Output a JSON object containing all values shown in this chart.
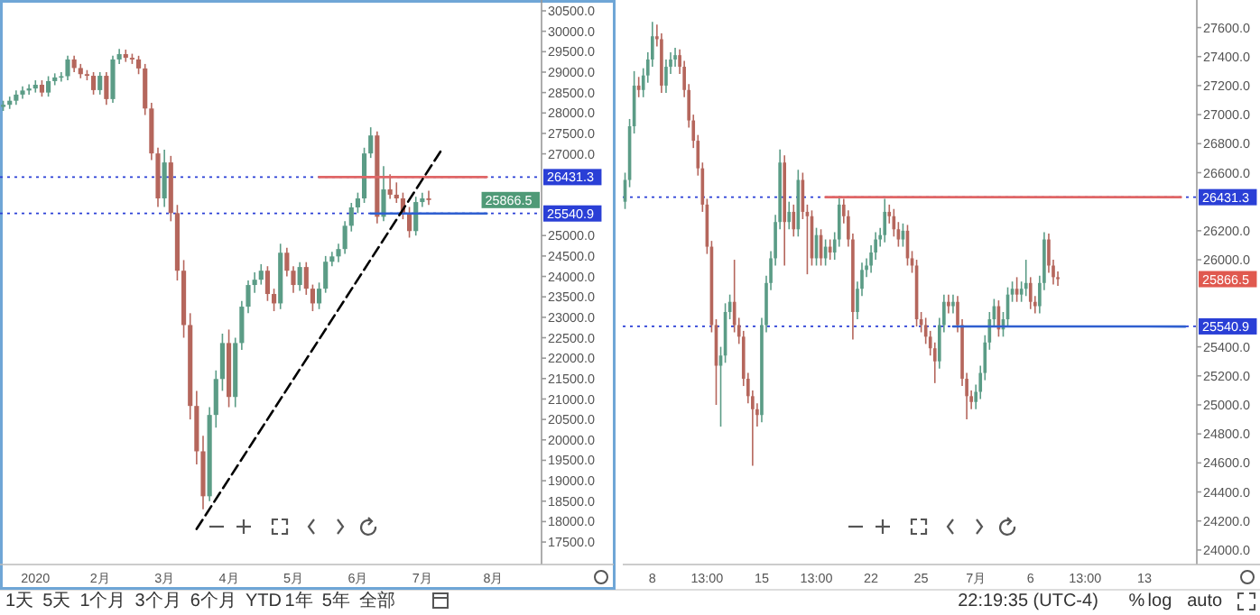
{
  "chart_data": [
    {
      "type": "candlestick",
      "categories": [
        null,
        null,
        null,
        null,
        null,
        "2020",
        null,
        null,
        null,
        null,
        null,
        null,
        null,
        null,
        null,
        "2月",
        null,
        null,
        null,
        null,
        null,
        null,
        null,
        null,
        null,
        "3月",
        null,
        null,
        null,
        null,
        null,
        null,
        null,
        null,
        null,
        "4月",
        null,
        null,
        null,
        null,
        null,
        null,
        null,
        null,
        null,
        "5月",
        null,
        null,
        null,
        null,
        null,
        null,
        null,
        null,
        null,
        "6月",
        null,
        null,
        null,
        null,
        null,
        null,
        null,
        null,
        null,
        "7月",
        null,
        null,
        null,
        null,
        null,
        null,
        null,
        null,
        null,
        null,
        "8月",
        null,
        null,
        null,
        null,
        null,
        null,
        null
      ],
      "ohlc": [
        [
          28150,
          28300,
          28050,
          28200
        ],
        [
          28200,
          28400,
          28100,
          28300
        ],
        [
          28300,
          28550,
          28200,
          28450
        ],
        [
          28450,
          28650,
          28350,
          28550
        ],
        [
          28550,
          28700,
          28450,
          28600
        ],
        [
          28600,
          28800,
          28500,
          28690
        ],
        [
          28690,
          28800,
          28400,
          28500
        ],
        [
          28500,
          28900,
          28400,
          28780
        ],
        [
          28780,
          28970,
          28680,
          28870
        ],
        [
          28870,
          29000,
          28770,
          28900
        ],
        [
          28900,
          29400,
          28800,
          29310
        ],
        [
          29310,
          29400,
          29000,
          29100
        ],
        [
          29100,
          29200,
          28850,
          28950
        ],
        [
          28950,
          29050,
          28800,
          28910
        ],
        [
          28910,
          29000,
          28450,
          28560
        ],
        [
          28560,
          29000,
          28450,
          28910
        ],
        [
          28910,
          29000,
          28200,
          28340
        ],
        [
          28340,
          29400,
          28250,
          29310
        ],
        [
          29310,
          29570,
          29200,
          29440
        ],
        [
          29440,
          29550,
          29250,
          29350
        ],
        [
          29350,
          29450,
          29200,
          29310
        ],
        [
          29310,
          29400,
          28950,
          29090
        ],
        [
          29090,
          29200,
          27950,
          28110
        ],
        [
          28110,
          28250,
          26850,
          27010
        ],
        [
          27010,
          27150,
          25700,
          25910
        ],
        [
          25910,
          27100,
          25700,
          26790
        ],
        [
          26790,
          26950,
          25350,
          25550
        ],
        [
          25550,
          25750,
          23900,
          24140
        ],
        [
          24140,
          24400,
          22500,
          22810
        ],
        [
          22810,
          23100,
          20500,
          20830
        ],
        [
          20830,
          21200,
          19400,
          19720
        ],
        [
          19720,
          20100,
          18300,
          18620
        ],
        [
          18620,
          20800,
          18500,
          20610
        ],
        [
          20610,
          21700,
          20300,
          21490
        ],
        [
          21490,
          22600,
          21200,
          22370
        ],
        [
          22370,
          22700,
          20800,
          21050
        ],
        [
          21050,
          22500,
          20800,
          22370
        ],
        [
          22370,
          23400,
          22200,
          23260
        ],
        [
          23260,
          23900,
          23100,
          23790
        ],
        [
          23790,
          24100,
          23600,
          23920
        ],
        [
          23920,
          24300,
          23800,
          24140
        ],
        [
          24140,
          24250,
          23400,
          23570
        ],
        [
          23570,
          23700,
          23150,
          23340
        ],
        [
          23340,
          24800,
          23200,
          24580
        ],
        [
          24580,
          24700,
          24000,
          24140
        ],
        [
          24140,
          24250,
          23600,
          23790
        ],
        [
          23790,
          24350,
          23650,
          24230
        ],
        [
          24230,
          24350,
          23550,
          23700
        ],
        [
          23700,
          23800,
          23150,
          23340
        ],
        [
          23340,
          23850,
          23200,
          23700
        ],
        [
          23700,
          24500,
          23600,
          24360
        ],
        [
          24360,
          24600,
          24250,
          24490
        ],
        [
          24490,
          24800,
          24350,
          24670
        ],
        [
          24670,
          25350,
          24550,
          25240
        ],
        [
          25240,
          25800,
          25100,
          25690
        ],
        [
          25690,
          26050,
          25550,
          25910
        ],
        [
          25910,
          27150,
          25800,
          27010
        ],
        [
          27010,
          27650,
          26900,
          27450
        ],
        [
          27450,
          27550,
          25300,
          25460
        ],
        [
          25460,
          26700,
          25350,
          26130
        ],
        [
          26130,
          26500,
          25900,
          26000
        ],
        [
          26000,
          26300,
          25800,
          25910
        ],
        [
          25910,
          26050,
          25400,
          25550
        ],
        [
          25550,
          25700,
          24950,
          25110
        ],
        [
          25110,
          25950,
          25000,
          25820
        ],
        [
          25820,
          26050,
          25700,
          25910
        ],
        [
          25910,
          26100,
          25750,
          25870
        ],
        null,
        null,
        null,
        null,
        null,
        null,
        null,
        null,
        null,
        null,
        null,
        null,
        null,
        null,
        null,
        null,
        null
      ],
      "series": [
        {
          "type": "line",
          "color": "#e06666",
          "line_style": "solid",
          "values": [
            null,
            null,
            null,
            null,
            null,
            null,
            null,
            null,
            null,
            null,
            null,
            null,
            null,
            null,
            null,
            null,
            null,
            null,
            null,
            null,
            null,
            null,
            null,
            null,
            null,
            null,
            null,
            null,
            null,
            null,
            null,
            null,
            null,
            null,
            null,
            null,
            null,
            null,
            null,
            null,
            null,
            null,
            null,
            null,
            null,
            null,
            null,
            null,
            null,
            26431.3,
            null,
            null,
            null,
            null,
            null,
            null,
            null,
            null,
            null,
            null,
            null,
            null,
            null,
            null,
            null,
            null,
            null,
            null,
            null,
            null,
            null,
            null,
            null,
            null,
            null,
            26431.3,
            null,
            null,
            null,
            null,
            null,
            null,
            null,
            null
          ]
        },
        {
          "type": "line",
          "color": "#2f5fd0",
          "line_style": "solid",
          "values": [
            null,
            null,
            null,
            null,
            null,
            null,
            null,
            null,
            null,
            null,
            null,
            null,
            null,
            null,
            null,
            null,
            null,
            null,
            null,
            null,
            null,
            null,
            null,
            null,
            null,
            null,
            null,
            null,
            null,
            null,
            null,
            null,
            null,
            null,
            null,
            null,
            null,
            null,
            null,
            null,
            null,
            null,
            null,
            null,
            null,
            null,
            null,
            null,
            null,
            null,
            null,
            null,
            null,
            null,
            null,
            null,
            null,
            25540.9,
            null,
            null,
            null,
            null,
            null,
            null,
            null,
            null,
            null,
            null,
            null,
            null,
            null,
            null,
            null,
            null,
            null,
            25540.9,
            null,
            null,
            null,
            null,
            null,
            null,
            null,
            null
          ]
        },
        {
          "type": "line",
          "color": "#000000",
          "line_style": "dashed",
          "values": [
            null,
            null,
            null,
            null,
            null,
            null,
            null,
            null,
            null,
            null,
            null,
            null,
            null,
            null,
            null,
            null,
            null,
            null,
            null,
            null,
            null,
            null,
            null,
            null,
            null,
            null,
            null,
            null,
            null,
            null,
            17820,
            null,
            null,
            null,
            null,
            null,
            null,
            null,
            null,
            null,
            null,
            null,
            null,
            null,
            null,
            null,
            null,
            null,
            null,
            null,
            null,
            null,
            null,
            null,
            null,
            null,
            null,
            null,
            null,
            null,
            null,
            null,
            null,
            null,
            null,
            null,
            null,
            null,
            27100,
            null,
            null,
            null,
            null,
            null,
            null,
            null,
            null,
            null,
            null,
            null,
            null,
            null,
            null,
            null
          ]
        }
      ],
      "ylim": [
        16950,
        30765
      ],
      "yticks": [
        {
          "value": 17500,
          "label": "17500.0"
        },
        {
          "value": 18000,
          "label": "18000.0"
        },
        {
          "value": 18500,
          "label": "18500.0"
        },
        {
          "value": 19000,
          "label": "19000.0"
        },
        {
          "value": 19500,
          "label": "19500.0"
        },
        {
          "value": 20000,
          "label": "20000.0"
        },
        {
          "value": 20500,
          "label": "20500.0"
        },
        {
          "value": 21000,
          "label": "21000.0"
        },
        {
          "value": 21500,
          "label": "21500.0"
        },
        {
          "value": 22000,
          "label": "22000.0"
        },
        {
          "value": 22500,
          "label": "22500.0"
        },
        {
          "value": 23000,
          "label": "23000.0"
        },
        {
          "value": 23500,
          "label": "23500.0"
        },
        {
          "value": 24000,
          "label": "24000.0"
        },
        {
          "value": 24500,
          "label": "24500.0"
        },
        {
          "value": 25000,
          "label": "25000.0"
        },
        {
          "value": 27000,
          "label": "27000.0"
        },
        {
          "value": 27500,
          "label": "27500.0"
        },
        {
          "value": 28000,
          "label": "28000.0"
        },
        {
          "value": 28500,
          "label": "28500.0"
        },
        {
          "value": 29000,
          "label": "29000.0"
        },
        {
          "value": 29500,
          "label": "29500.0"
        },
        {
          "value": 30000,
          "label": "30000.0"
        },
        {
          "value": 30500,
          "label": "30500.0"
        }
      ],
      "ref_lines": [
        {
          "axis": "y",
          "value": 26431.3,
          "label": "26431.3",
          "color": "#2a3fd6",
          "line_style": "dotted"
        },
        {
          "axis": "y",
          "value": 25540.9,
          "label": "25540.9",
          "color": "#2a3fd6",
          "line_style": "dotted"
        }
      ],
      "annotations": [
        "25866.5",
        "1天",
        "5天",
        "1个月",
        "3个月",
        "6个月",
        "YTD",
        "1年",
        "5年",
        "全部"
      ]
    },
    {
      "type": "candlestick",
      "categories": [
        null,
        null,
        null,
        null,
        null,
        null,
        "8",
        null,
        null,
        null,
        null,
        null,
        null,
        null,
        null,
        null,
        null,
        null,
        "13:00",
        null,
        null,
        null,
        null,
        null,
        null,
        null,
        null,
        null,
        null,
        null,
        "15",
        null,
        null,
        null,
        null,
        null,
        null,
        null,
        null,
        null,
        null,
        null,
        "13:00",
        null,
        null,
        null,
        null,
        null,
        null,
        null,
        null,
        null,
        null,
        null,
        "22",
        null,
        null,
        null,
        null,
        null,
        null,
        null,
        null,
        null,
        null,
        "25",
        null,
        null,
        null,
        null,
        null,
        null,
        null,
        null,
        null,
        null,
        null,
        "7月",
        null,
        null,
        null,
        null,
        null,
        null,
        null,
        null,
        null,
        null,
        null,
        "6",
        null,
        null,
        null,
        null,
        null,
        null,
        null,
        null,
        null,
        null,
        null,
        "13:00",
        null,
        null,
        null,
        null,
        null,
        null,
        null,
        null,
        null,
        null,
        null,
        null,
        "13",
        null,
        null,
        null,
        null,
        null,
        null,
        null,
        null,
        null,
        null,
        null
      ],
      "ohlc": [
        [
          26400,
          26600,
          26350,
          26550
        ],
        [
          26550,
          26970,
          26500,
          26920
        ],
        [
          26920,
          27300,
          26870,
          27200
        ],
        [
          27200,
          27260,
          27120,
          27170
        ],
        [
          27170,
          27320,
          27120,
          27270
        ],
        [
          27270,
          27430,
          27220,
          27380
        ],
        [
          27380,
          27640,
          27330,
          27540
        ],
        [
          27540,
          27620,
          27470,
          27520
        ],
        [
          27520,
          27560,
          27150,
          27200
        ],
        [
          27200,
          27380,
          27150,
          27330
        ],
        [
          27330,
          27430,
          27280,
          27380
        ],
        [
          27380,
          27460,
          27330,
          27410
        ],
        [
          27410,
          27450,
          27280,
          27330
        ],
        [
          27330,
          27370,
          27120,
          27170
        ],
        [
          27170,
          27210,
          26910,
          26960
        ],
        [
          26960,
          27000,
          26770,
          26820
        ],
        [
          26820,
          26860,
          26580,
          26630
        ],
        [
          26630,
          26670,
          26330,
          26380
        ],
        [
          26380,
          26420,
          26040,
          26090
        ],
        [
          26090,
          26130,
          25500,
          25550
        ],
        [
          25550,
          25590,
          25000,
          25270
        ],
        [
          25270,
          25400,
          24850,
          25340
        ],
        [
          25340,
          25700,
          25290,
          25640
        ],
        [
          25640,
          25760,
          25590,
          25710
        ],
        [
          25710,
          26000,
          25500,
          25550
        ],
        [
          25550,
          25600,
          25420,
          25470
        ],
        [
          25470,
          25510,
          25130,
          25180
        ],
        [
          25180,
          25220,
          25010,
          25060
        ],
        [
          25060,
          25100,
          24580,
          24970
        ],
        [
          24970,
          25010,
          24850,
          24930
        ],
        [
          24930,
          25600,
          24880,
          25550
        ],
        [
          25550,
          25890,
          25500,
          25840
        ],
        [
          25840,
          26060,
          25790,
          26010
        ],
        [
          26010,
          26310,
          25960,
          26260
        ],
        [
          26260,
          26760,
          26210,
          26670
        ],
        [
          26670,
          26720,
          25960,
          26260
        ],
        [
          26260,
          26400,
          26210,
          26330
        ],
        [
          26330,
          26380,
          26160,
          26210
        ],
        [
          26210,
          26620,
          26160,
          26550
        ],
        [
          26550,
          26600,
          26280,
          26330
        ],
        [
          26330,
          26380,
          25900,
          26300
        ],
        [
          26300,
          26340,
          25960,
          26010
        ],
        [
          26010,
          26220,
          25960,
          26170
        ],
        [
          26170,
          26210,
          25960,
          26010
        ],
        [
          26010,
          26140,
          25960,
          26090
        ],
        [
          26090,
          26140,
          26000,
          26050
        ],
        [
          26050,
          26190,
          26000,
          26140
        ],
        [
          26140,
          26440,
          26090,
          26380
        ],
        [
          26380,
          26420,
          26250,
          26300
        ],
        [
          26300,
          26340,
          26090,
          26140
        ],
        [
          26140,
          26180,
          25450,
          25640
        ],
        [
          25640,
          25850,
          25590,
          25800
        ],
        [
          25800,
          25980,
          25750,
          25930
        ],
        [
          25930,
          26010,
          25880,
          25960
        ],
        [
          25960,
          26100,
          25910,
          26050
        ],
        [
          26050,
          26190,
          26000,
          26140
        ],
        [
          26140,
          26220,
          26090,
          26170
        ],
        [
          26170,
          26420,
          26120,
          26330
        ],
        [
          26330,
          26380,
          26250,
          26300
        ],
        [
          26300,
          26350,
          26160,
          26210
        ],
        [
          26210,
          26260,
          26090,
          26140
        ],
        [
          26140,
          26250,
          26090,
          26200
        ],
        [
          26200,
          26240,
          25960,
          26010
        ],
        [
          26010,
          26060,
          25910,
          25960
        ],
        [
          25960,
          26000,
          25540,
          25590
        ],
        [
          25590,
          25640,
          25500,
          25550
        ],
        [
          25550,
          25600,
          25420,
          25470
        ],
        [
          25470,
          25510,
          25340,
          25390
        ],
        [
          25390,
          25430,
          25150,
          25300
        ],
        [
          25300,
          25600,
          25250,
          25550
        ],
        [
          25550,
          25760,
          25500,
          25710
        ],
        [
          25710,
          25760,
          25630,
          25680
        ],
        [
          25680,
          25760,
          25630,
          25710
        ],
        [
          25710,
          25750,
          25500,
          25550
        ],
        [
          25550,
          25590,
          25130,
          25180
        ],
        [
          25180,
          25220,
          24900,
          25060
        ],
        [
          25060,
          25100,
          24970,
          25020
        ],
        [
          25020,
          25140,
          24970,
          25090
        ],
        [
          25090,
          25270,
          25040,
          25220
        ],
        [
          25220,
          25480,
          25170,
          25430
        ],
        [
          25430,
          25640,
          25380,
          25590
        ],
        [
          25590,
          25730,
          25540,
          25680
        ],
        [
          25680,
          25720,
          25470,
          25520
        ],
        [
          25520,
          25640,
          25470,
          25590
        ],
        [
          25590,
          25810,
          25540,
          25760
        ],
        [
          25760,
          25850,
          25710,
          25800
        ],
        [
          25800,
          25880,
          25710,
          25760
        ],
        [
          25760,
          25850,
          25710,
          25800
        ],
        [
          25800,
          26000,
          25750,
          25840
        ],
        [
          25840,
          25880,
          25660,
          25710
        ],
        [
          25710,
          25750,
          25630,
          25680
        ],
        [
          25680,
          25890,
          25630,
          25840
        ],
        [
          25840,
          26190,
          25790,
          26140
        ],
        [
          26140,
          26180,
          25910,
          25960
        ],
        [
          25960,
          26000,
          25830,
          25880
        ],
        [
          25880,
          25920,
          25820,
          25866.5
        ],
        null,
        null,
        null,
        null,
        null,
        null,
        null,
        null,
        null,
        null,
        null,
        null,
        null,
        null,
        null,
        null,
        null,
        null,
        null,
        null,
        null,
        null,
        null,
        null,
        null,
        null,
        null,
        null,
        null,
        null
      ],
      "series": [
        {
          "type": "line",
          "color": "#e06666",
          "line_style": "solid",
          "values": [
            null,
            null,
            null,
            null,
            null,
            null,
            null,
            null,
            null,
            null,
            null,
            null,
            null,
            null,
            null,
            null,
            null,
            null,
            null,
            null,
            null,
            null,
            null,
            null,
            null,
            null,
            null,
            null,
            null,
            null,
            null,
            null,
            null,
            null,
            null,
            null,
            null,
            null,
            null,
            null,
            null,
            null,
            null,
            null,
            26431.3,
            null,
            null,
            null,
            null,
            null,
            null,
            null,
            null,
            null,
            null,
            null,
            null,
            null,
            null,
            null,
            null,
            null,
            null,
            null,
            null,
            null,
            null,
            null,
            null,
            null,
            null,
            null,
            null,
            null,
            null,
            null,
            null,
            null,
            null,
            null,
            null,
            null,
            null,
            null,
            null,
            null,
            null,
            null,
            null,
            null,
            null,
            null,
            null,
            null,
            null,
            null,
            null,
            null,
            null,
            null,
            null,
            null,
            null,
            null,
            null,
            null,
            null,
            null,
            null,
            null,
            null,
            null,
            null,
            null,
            null,
            null,
            null,
            null,
            null,
            null,
            null,
            null,
            26431.3,
            null,
            null,
            null
          ]
        },
        {
          "type": "line",
          "color": "#2f5fd0",
          "line_style": "solid",
          "values": [
            null,
            null,
            null,
            null,
            null,
            null,
            null,
            null,
            null,
            null,
            null,
            null,
            null,
            null,
            null,
            null,
            null,
            null,
            null,
            null,
            null,
            null,
            null,
            null,
            null,
            null,
            null,
            null,
            null,
            null,
            null,
            null,
            null,
            null,
            null,
            null,
            null,
            null,
            null,
            null,
            null,
            null,
            null,
            null,
            null,
            null,
            null,
            null,
            null,
            null,
            null,
            null,
            null,
            null,
            null,
            null,
            null,
            null,
            null,
            null,
            null,
            null,
            null,
            null,
            null,
            null,
            null,
            null,
            null,
            null,
            null,
            null,
            25540.9,
            null,
            null,
            null,
            null,
            null,
            null,
            null,
            null,
            null,
            null,
            null,
            null,
            null,
            null,
            null,
            null,
            null,
            null,
            null,
            null,
            null,
            null,
            null,
            null,
            null,
            null,
            null,
            null,
            null,
            null,
            null,
            null,
            null,
            null,
            null,
            null,
            null,
            null,
            null,
            null,
            null,
            null,
            null,
            null,
            null,
            null,
            null,
            null,
            null,
            null,
            25540,
            null,
            null
          ]
        }
      ],
      "ylim": [
        23900,
        27790
      ],
      "yticks": [
        {
          "value": 24000,
          "label": "24000.0"
        },
        {
          "value": 24200,
          "label": "24200.0"
        },
        {
          "value": 24400,
          "label": "24400.0"
        },
        {
          "value": 24600,
          "label": "24600.0"
        },
        {
          "value": 24800,
          "label": "24800.0"
        },
        {
          "value": 25000,
          "label": "25000.0"
        },
        {
          "value": 25200,
          "label": "25200.0"
        },
        {
          "value": 25400,
          "label": "25400.0"
        },
        {
          "value": 26000,
          "label": "26000.0"
        },
        {
          "value": 26200,
          "label": "26200.0"
        },
        {
          "value": 26600,
          "label": "26600.0"
        },
        {
          "value": 26800,
          "label": "26800.0"
        },
        {
          "value": 27000,
          "label": "27000.0"
        },
        {
          "value": 27200,
          "label": "27200.0"
        },
        {
          "value": 27400,
          "label": "27400.0"
        },
        {
          "value": 27600,
          "label": "27600.0"
        }
      ],
      "ref_lines": [
        {
          "axis": "y",
          "value": 26431.3,
          "label": "26431.3",
          "color": "#2a3fd6",
          "line_style": "dotted"
        },
        {
          "axis": "y",
          "value": 25540.9,
          "label": "25540.9",
          "color": "#2a3fd6",
          "line_style": "dotted"
        }
      ],
      "annotations": [
        "25866.5",
        "22:19:35 (UTC-4)",
        "%",
        "log",
        "auto"
      ]
    }
  ]
}
